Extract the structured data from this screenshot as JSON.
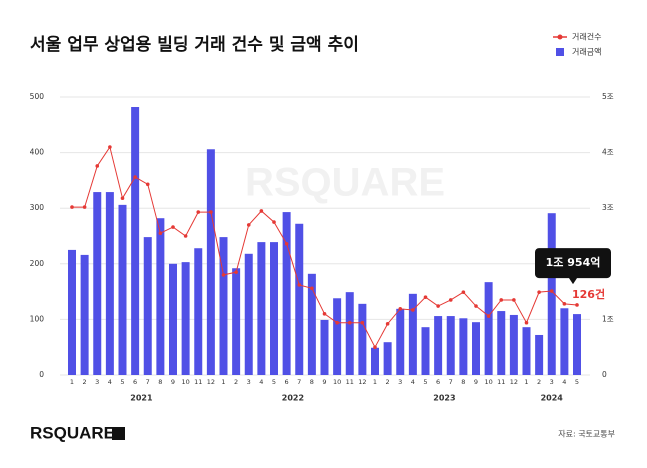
{
  "chart_data": {
    "type": "combo",
    "title": "서울 업무 상업용 빌딩 거래 건수 및 금액 추이",
    "source": "자료: 국토교통부",
    "logo": "RSQUARE",
    "watermark": "RSQUARE",
    "categories": [
      "1",
      "2",
      "3",
      "4",
      "5",
      "6",
      "7",
      "8",
      "9",
      "10",
      "11",
      "12",
      "1",
      "2",
      "3",
      "4",
      "5",
      "6",
      "7",
      "8",
      "9",
      "10",
      "11",
      "12",
      "1",
      "2",
      "3",
      "4",
      "5",
      "6",
      "7",
      "8",
      "9",
      "10",
      "11",
      "12",
      "1",
      "2",
      "3",
      "4",
      "5"
    ],
    "years": [
      "2021",
      "2022",
      "2023",
      "2024"
    ],
    "ylim": [
      0,
      500
    ],
    "yticks": [
      0,
      100,
      200,
      300,
      400,
      500
    ],
    "y2lim": [
      0,
      5
    ],
    "y2ticks": [
      0,
      {
        "value": 1,
        "label": "1조"
      },
      {
        "value": 3,
        "label": "3조"
      },
      {
        "value": 4,
        "label": "4조"
      },
      {
        "value": 5,
        "label": "5조"
      }
    ],
    "grid": true,
    "legend": "top-right",
    "series": [
      {
        "name": "거래건수",
        "type": "line",
        "color": "#e53935",
        "values": [
          302,
          302,
          376,
          410,
          318,
          356,
          343,
          255,
          266,
          250,
          293,
          293,
          180,
          185,
          270,
          295,
          275,
          236,
          162,
          156,
          110,
          94,
          94,
          94,
          50,
          92,
          119,
          117,
          140,
          124,
          135,
          149,
          124,
          106,
          135,
          135,
          94,
          149,
          151,
          128,
          126
        ],
        "value_labels": [
          null,
          null,
          null,
          null,
          null,
          null,
          null,
          null,
          null,
          null,
          null,
          null,
          null,
          null,
          null,
          null,
          null,
          null,
          null,
          null,
          null,
          null,
          null,
          null,
          null,
          null,
          null,
          null,
          null,
          null,
          null,
          null,
          null,
          null,
          null,
          null,
          null,
          null,
          null,
          null,
          "126건"
        ]
      },
      {
        "name": "거래금액",
        "type": "bar",
        "axis": "y2",
        "color": "#5050e6",
        "values": [
          2.25,
          2.16,
          3.29,
          3.29,
          3.06,
          4.82,
          2.48,
          2.82,
          2.0,
          2.03,
          2.28,
          4.06,
          2.48,
          1.92,
          2.18,
          2.39,
          2.39,
          2.93,
          2.72,
          1.82,
          0.99,
          1.38,
          1.49,
          1.28,
          0.49,
          0.59,
          1.19,
          1.46,
          0.86,
          1.06,
          1.06,
          1.02,
          0.95,
          1.67,
          1.15,
          1.08,
          0.86,
          0.72,
          2.91,
          1.2,
          1.0954
        ],
        "value_labels": [
          null,
          null,
          null,
          null,
          null,
          null,
          null,
          null,
          null,
          null,
          null,
          null,
          null,
          null,
          null,
          null,
          null,
          null,
          null,
          null,
          null,
          null,
          null,
          null,
          null,
          null,
          null,
          null,
          null,
          null,
          null,
          null,
          null,
          null,
          null,
          null,
          null,
          null,
          null,
          null,
          "1조 954억"
        ]
      }
    ]
  }
}
